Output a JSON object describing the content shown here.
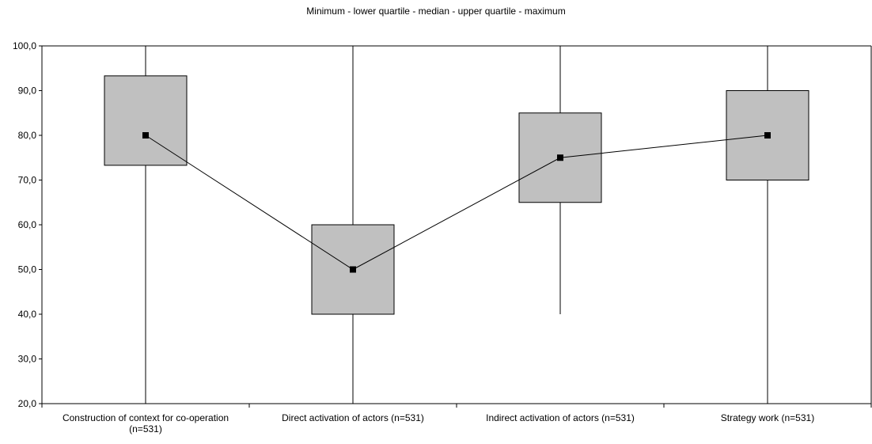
{
  "chart_data": {
    "type": "box",
    "title": "Minimum - lower quartile - median - upper quartile - maximum",
    "xlabel": "",
    "ylabel": "",
    "ylim": [
      20,
      100
    ],
    "yticks": [
      "20,0",
      "30,0",
      "40,0",
      "50,0",
      "60,0",
      "70,0",
      "80,0",
      "90,0",
      "100,0"
    ],
    "categories": [
      [
        "Construction of context for co-operation",
        "(n=531)"
      ],
      [
        "Direct activation of actors (n=531)"
      ],
      [
        "Indirect activation of actors (n=531)"
      ],
      [
        "Strategy work (n=531)"
      ]
    ],
    "series": [
      {
        "stat": "minimum",
        "values": [
          20,
          20,
          40,
          20
        ]
      },
      {
        "stat": "lower quartile",
        "values": [
          73.3,
          40,
          65,
          70
        ]
      },
      {
        "stat": "median",
        "values": [
          80,
          50,
          75,
          80
        ]
      },
      {
        "stat": "upper quartile",
        "values": [
          93.3,
          60,
          85,
          90
        ]
      },
      {
        "stat": "maximum",
        "values": [
          100,
          100,
          100,
          100
        ]
      }
    ],
    "grid": false,
    "legend": "none",
    "colors": {
      "box_fill": "#c0c0c0",
      "stroke": "#000000",
      "marker": "#000000",
      "text": "#000000"
    }
  }
}
